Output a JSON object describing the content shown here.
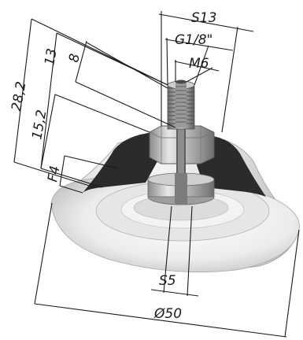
{
  "dimensions": {
    "s13": "S13",
    "thread": "G1/8\"",
    "m6": "M6",
    "d13": "13",
    "d8": "8",
    "d28": "28,2",
    "d15": "15,2",
    "f4": "F4",
    "s5": "S5",
    "dia50": "Ø50"
  }
}
